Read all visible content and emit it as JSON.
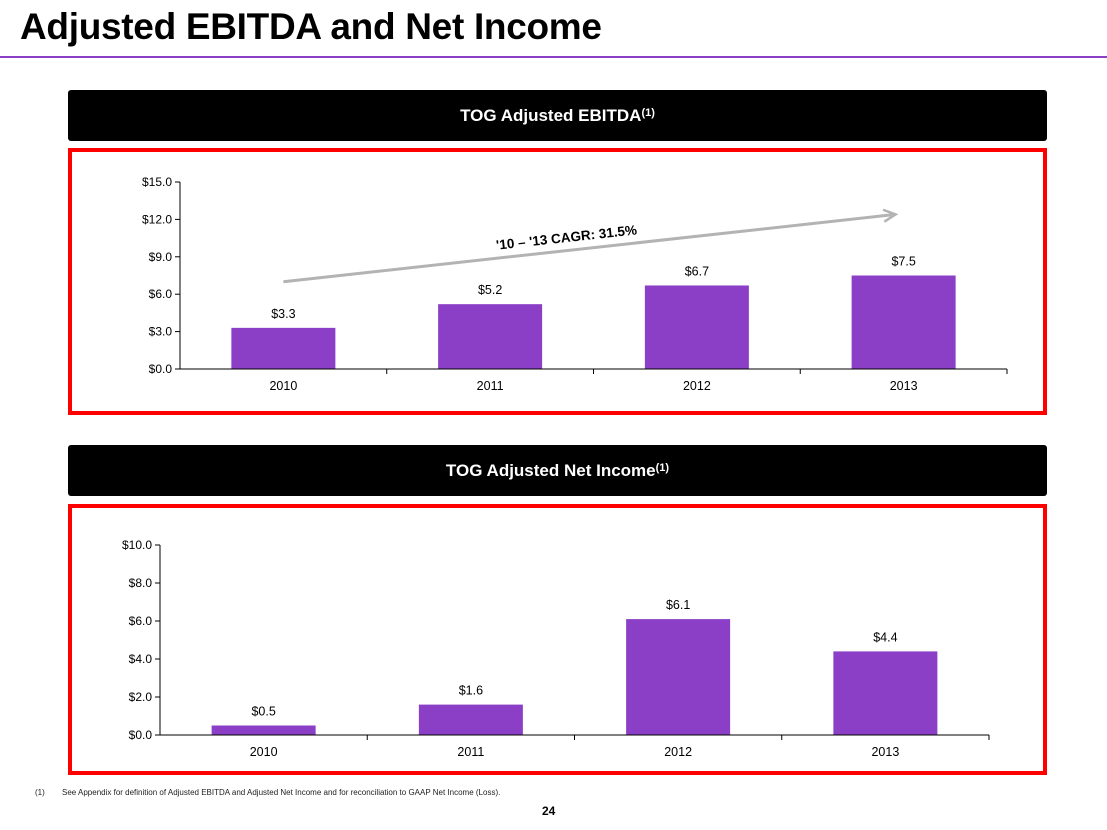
{
  "page": {
    "title": "Adjusted EBITDA and Net Income",
    "page_number": "24",
    "accent_color": "#8b3fc6",
    "frame_color": "#ff0000"
  },
  "footnote": {
    "marker": "(1)",
    "text": "See Appendix for definition of Adjusted EBITDA and Adjusted Net Income and for reconciliation to GAAP Net Income (Loss)."
  },
  "chart_data": [
    {
      "type": "bar",
      "title": "TOG Adjusted EBITDA",
      "title_superscript": "(1)",
      "categories": [
        "2010",
        "2011",
        "2012",
        "2013"
      ],
      "values": [
        3.3,
        5.2,
        6.7,
        7.5
      ],
      "data_labels": [
        "$3.3",
        "$5.2",
        "$6.7",
        "$7.5"
      ],
      "xlabel": "",
      "ylabel": "",
      "ylim": [
        0,
        15
      ],
      "yticks": [
        0,
        3,
        6,
        9,
        12,
        15
      ],
      "ytick_labels": [
        "$0.0",
        "$3.0",
        "$6.0",
        "$9.0",
        "$12.0",
        "$15.0"
      ],
      "grid": false,
      "bar_color": "#8b3fc6",
      "annotation": {
        "text": "'10 – '13 CAGR: 31.5%",
        "type": "trend-arrow",
        "from_category": "2010",
        "to_category": "2013",
        "arrow_color": "#b3b3b3"
      }
    },
    {
      "type": "bar",
      "title": "TOG Adjusted Net Income",
      "title_superscript": "(1)",
      "categories": [
        "2010",
        "2011",
        "2012",
        "2013"
      ],
      "values": [
        0.5,
        1.6,
        6.1,
        4.4
      ],
      "data_labels": [
        "$0.5",
        "$1.6",
        "$6.1",
        "$4.4"
      ],
      "xlabel": "",
      "ylabel": "",
      "ylim": [
        0,
        10
      ],
      "yticks": [
        0,
        2,
        4,
        6,
        8,
        10
      ],
      "ytick_labels": [
        "$0.0",
        "$2.0",
        "$4.0",
        "$6.0",
        "$8.0",
        "$10.0"
      ],
      "grid": false,
      "bar_color": "#8b3fc6"
    }
  ]
}
